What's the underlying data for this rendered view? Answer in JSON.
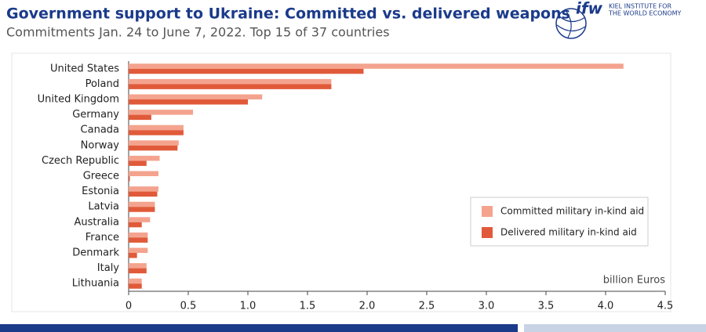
{
  "chart_data": {
    "type": "hbar",
    "title": "Government support to Ukraine: Committed vs. delivered weapons",
    "subtitle": "Commitments Jan. 24 to June 7, 2022. Top 15 of 37 countries",
    "x_label": "billion Euros",
    "categories": [
      "United States",
      "Poland",
      "United Kingdom",
      "Germany",
      "Canada",
      "Norway",
      "Czech Republic",
      "Greece",
      "Estonia",
      "Latvia",
      "Australia",
      "France",
      "Denmark",
      "Italy",
      "Lithuania"
    ],
    "series": [
      {
        "name": "Committed military in-kind aid",
        "color": "#f4a38e",
        "values": [
          4.15,
          1.7,
          1.12,
          0.54,
          0.46,
          0.42,
          0.26,
          0.25,
          0.25,
          0.22,
          0.18,
          0.16,
          0.16,
          0.15,
          0.11
        ]
      },
      {
        "name": "Delivered military in-kind aid",
        "color": "#e05a3a",
        "values": [
          1.97,
          1.7,
          1.0,
          0.19,
          0.46,
          0.41,
          0.15,
          0.01,
          0.24,
          0.22,
          0.11,
          0.16,
          0.07,
          0.15,
          0.11
        ]
      }
    ],
    "xlim": [
      0,
      4.5
    ],
    "xticks": [
      0,
      0.5,
      {
        "value": 1,
        "label": "1.0"
      },
      1.5,
      {
        "value": 2,
        "label": "2.0"
      },
      2.5,
      {
        "value": 3,
        "label": "3.0"
      },
      3.5,
      {
        "value": 4,
        "label": "4.0"
      },
      4.5
    ],
    "grid": false,
    "legend": "lower right"
  },
  "logo": {
    "mark": "ifw",
    "line1": "KIEL INSTITUTE FOR",
    "line2": "THE WORLD ECONOMY"
  }
}
